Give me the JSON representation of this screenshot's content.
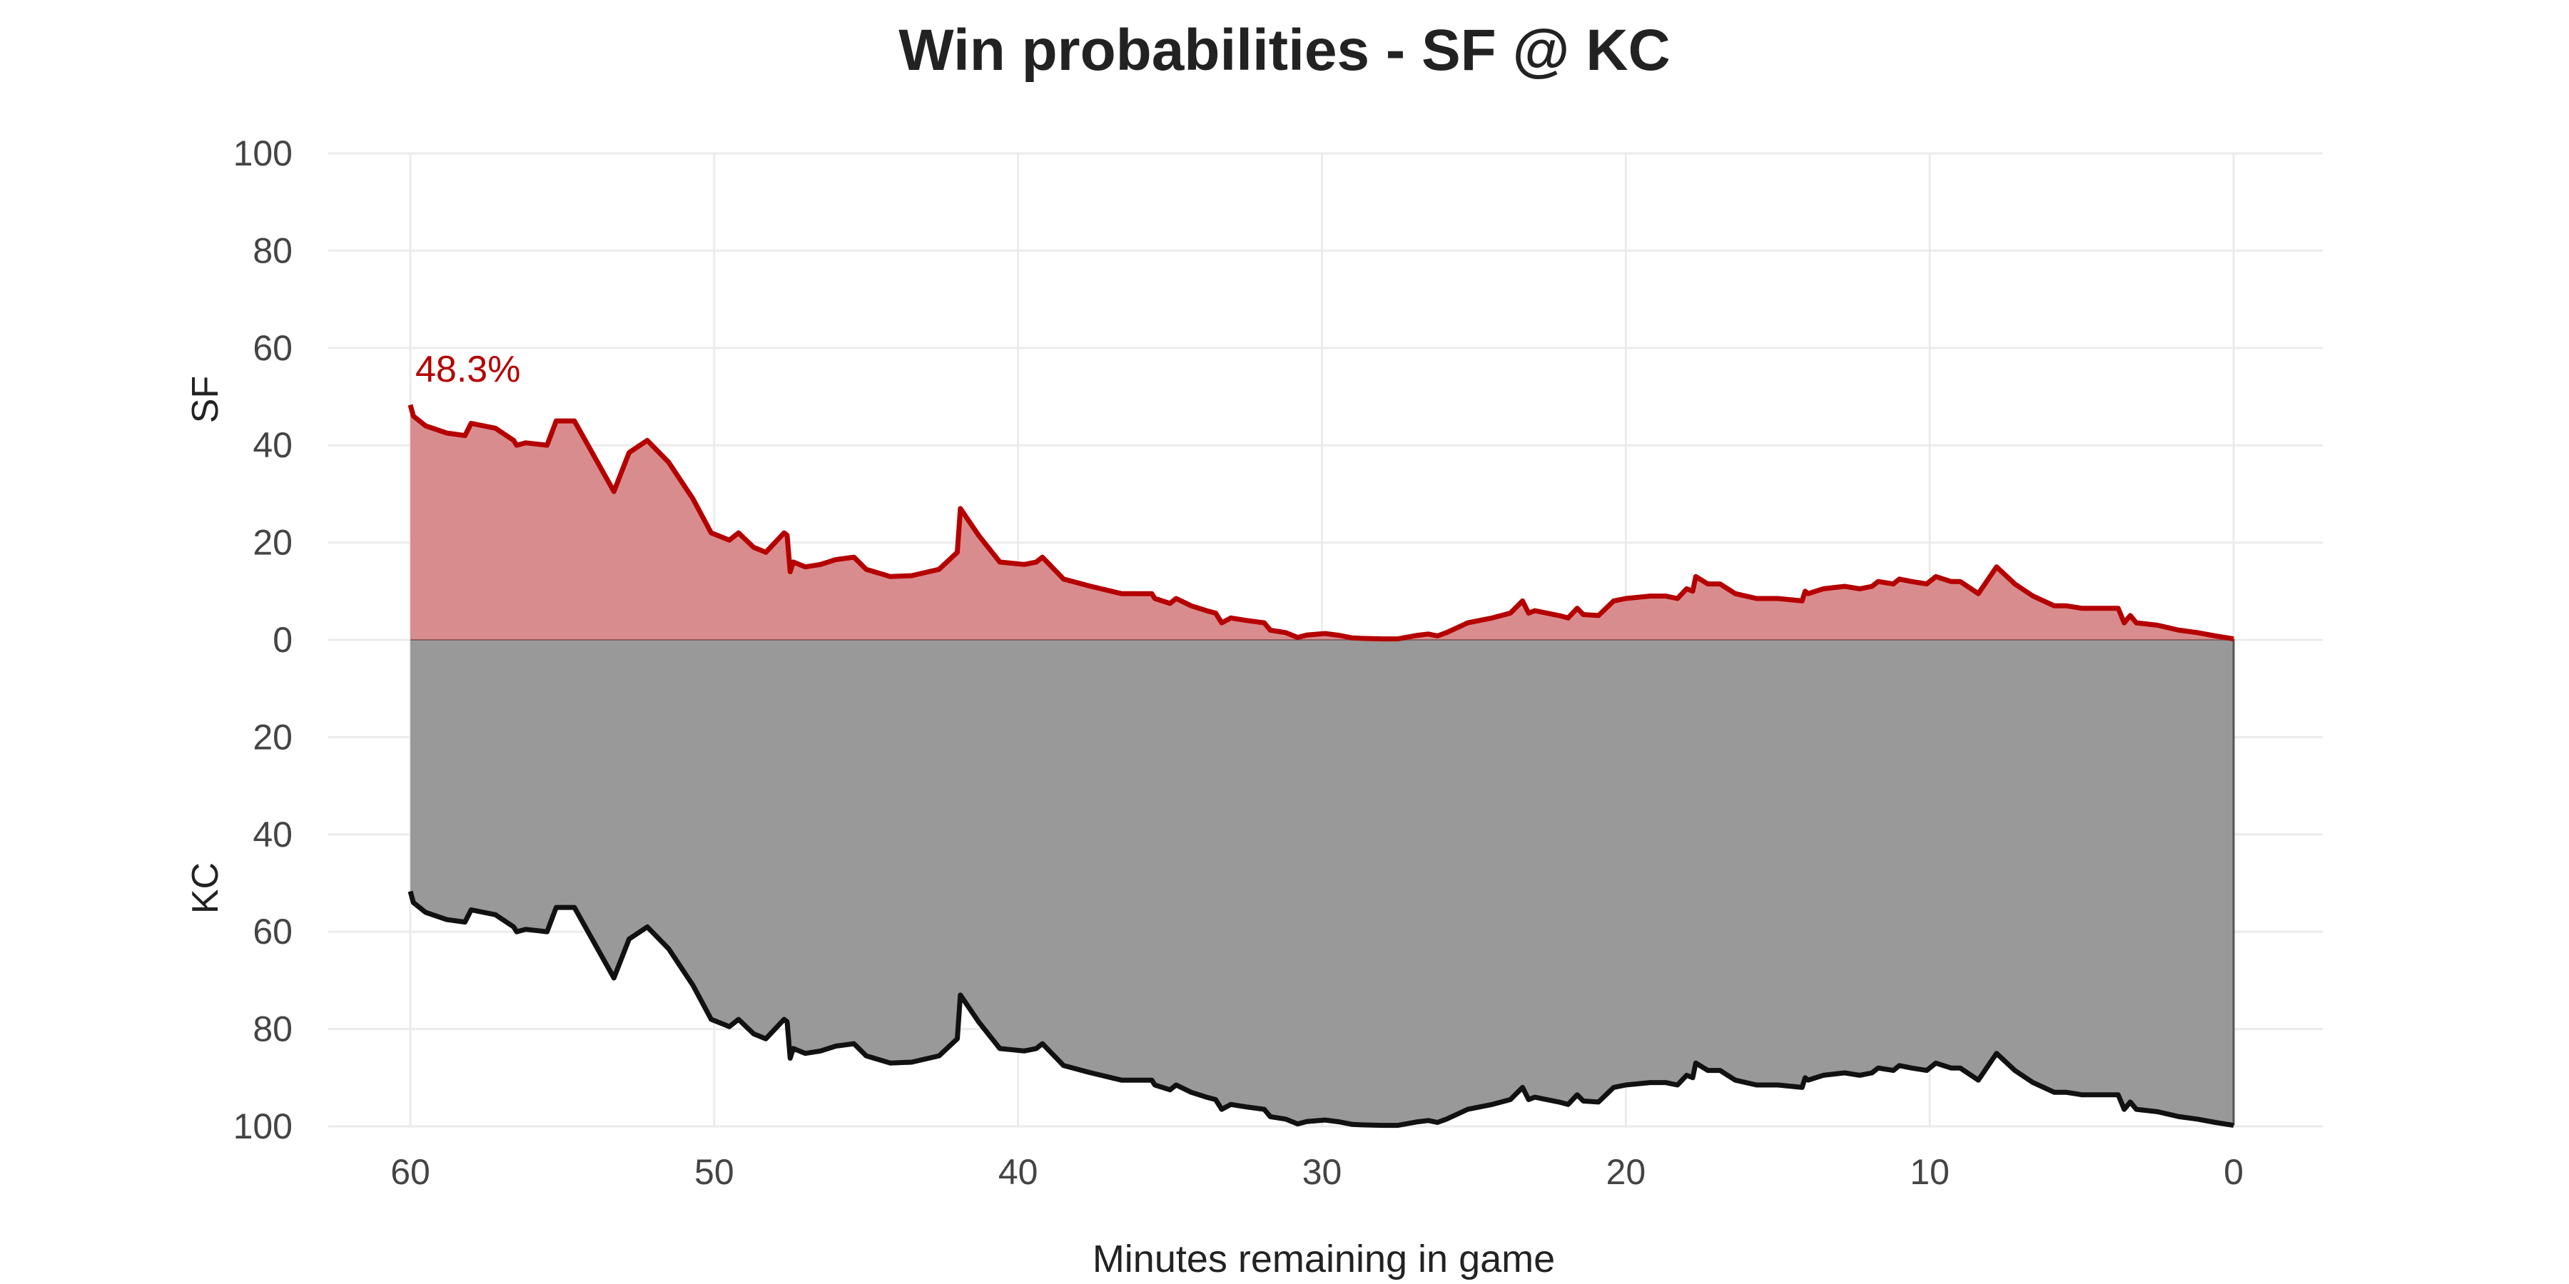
{
  "chart_data": {
    "type": "area",
    "title": "Win probabilities - SF @ KC",
    "xlabel": "Minutes remaining in game",
    "ylabel_top": "SF",
    "ylabel_bottom": "KC",
    "xlim": [
      60,
      0
    ],
    "x_ticks": [
      "60",
      "50",
      "40",
      "30",
      "20",
      "10",
      "0"
    ],
    "y_ticks_top": [
      "100",
      "80",
      "60",
      "40",
      "20",
      "0"
    ],
    "y_ticks_bottom": [
      "20",
      "40",
      "60",
      "80",
      "100"
    ],
    "grid": true,
    "colors": {
      "sf": "#b50000",
      "sf_fill": "#d98c8e",
      "kc": "#111111",
      "kc_fill": "#999999"
    },
    "annotation": {
      "text": "48.3%"
    },
    "series": [
      {
        "name": "SF",
        "x_minutes_remaining": [
          60,
          59.9,
          59.5,
          58.8,
          58.2,
          58,
          57.2,
          56.6,
          56.5,
          56.2,
          55.5,
          55.2,
          54.6,
          53.3,
          52.8,
          52.2,
          51.5,
          50.7,
          50.1,
          49.5,
          49.2,
          48.7,
          48.3,
          47.7,
          47.6,
          47.5,
          47.4,
          47.0,
          46.5,
          46.0,
          45.4,
          45.0,
          44.2,
          43.5,
          42.6,
          42.0,
          41.9,
          41.3,
          40.6,
          39.8,
          39.4,
          39.2,
          38.5,
          37.6,
          36.6,
          35.6,
          35.5,
          35.0,
          34.8,
          34.3,
          33.8,
          33.5,
          33.3,
          33.0,
          32.5,
          31.9,
          31.7,
          31.2,
          30.8,
          30.5,
          29.9,
          29.4,
          29.0,
          28.6,
          28.0,
          27.5,
          26.9,
          26.5,
          26.2,
          25.9,
          25.2,
          24.4,
          23.8,
          23.4,
          23.2,
          23.0,
          22.2,
          21.9,
          21.6,
          21.4,
          20.9,
          20.4,
          20.0,
          19.2,
          18.7,
          18.3,
          18.0,
          17.8,
          17.7,
          17.3,
          16.9,
          16.4,
          15.7,
          15.0,
          14.2,
          14.1,
          14.0,
          13.5,
          12.8,
          12.3,
          11.9,
          11.7,
          11.2,
          11.0,
          10.6,
          10.1,
          9.8,
          9.3,
          9.0,
          8.4,
          7.8,
          7.2,
          6.6,
          5.9,
          5.5,
          5.0,
          3.8,
          3.6,
          3.4,
          3.2,
          2.5,
          1.8,
          1.2,
          0.6,
          0.0
        ],
        "values": [
          48.3,
          46,
          44,
          42.5,
          42,
          44.5,
          43.5,
          41,
          40,
          40.5,
          40,
          45,
          45,
          30.5,
          38.5,
          41,
          36.5,
          29,
          22,
          20.5,
          22,
          19,
          18,
          22,
          21.5,
          14,
          16,
          15,
          15.5,
          16.5,
          17,
          14.5,
          13,
          13.2,
          14.5,
          18,
          27,
          21.5,
          16,
          15.5,
          16,
          17,
          12.5,
          11,
          9.5,
          9.5,
          8.5,
          7.5,
          8.5,
          7,
          6,
          5.5,
          3.5,
          4.5,
          4,
          3.5,
          2,
          1.5,
          0.5,
          1,
          1.3,
          0.9,
          0.4,
          0.3,
          0.2,
          0.2,
          0.9,
          1.2,
          0.8,
          1.5,
          3.5,
          4.5,
          5.5,
          8,
          5.5,
          6,
          5,
          4.5,
          6.5,
          5.2,
          5,
          8,
          8.5,
          9,
          9,
          8.5,
          10.5,
          10,
          13,
          11.5,
          11.5,
          9.5,
          8.5,
          8.5,
          8,
          10,
          9.5,
          10.5,
          11,
          10.5,
          11,
          12,
          11.5,
          12.5,
          12,
          11.5,
          13,
          12,
          12,
          9.5,
          15,
          11.5,
          9,
          7,
          7,
          6.5,
          6.5,
          3.5,
          5,
          3.5,
          3,
          2,
          1.5,
          0.8,
          0.2
        ]
      },
      {
        "name": "KC",
        "note": "KC probability = 100 - SF probability (drawn mirrored below 0)"
      }
    ]
  }
}
